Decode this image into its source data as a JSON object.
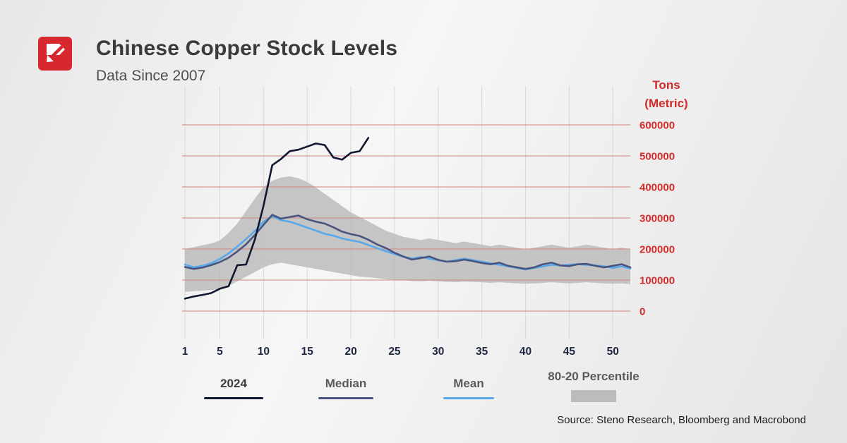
{
  "header": {
    "title": "Chinese Copper Stock Levels",
    "subtitle": "Data Since 2007",
    "logo_color": "#d7282f"
  },
  "axis": {
    "y_title_line1": "Tons",
    "y_title_line2": "(Metric)",
    "y_color": "#d22b2b",
    "x_color": "#1e2742",
    "y_ticks": [
      0,
      100000,
      200000,
      300000,
      400000,
      500000,
      600000
    ],
    "x_ticks": [
      1,
      5,
      10,
      15,
      20,
      25,
      30,
      35,
      40,
      45,
      50
    ]
  },
  "legend": {
    "items": [
      {
        "label": "2024",
        "color": "#10182f",
        "type": "line"
      },
      {
        "label": "Median",
        "color": "#49557f",
        "type": "line"
      },
      {
        "label": "Mean",
        "color": "#59a9ea",
        "type": "line"
      },
      {
        "label": "80-20 Percentile",
        "color": "#bcbcbc",
        "type": "band"
      }
    ]
  },
  "source": "Source: Steno Research, Bloomberg and Macrobond",
  "chart_data": {
    "type": "line",
    "title": "Chinese Copper Stock Levels",
    "subtitle": "Data Since 2007",
    "ylabel": "Tons (Metric)",
    "xlabel": "",
    "ylim": [
      0,
      600000
    ],
    "xlim": [
      1,
      52
    ],
    "grid": {
      "horizontal_color": "#d4827c",
      "vertical_color": "#d8d8d8"
    },
    "x": [
      1,
      2,
      3,
      4,
      5,
      6,
      7,
      8,
      9,
      10,
      11,
      12,
      13,
      14,
      15,
      16,
      17,
      18,
      19,
      20,
      21,
      22,
      23,
      24,
      25,
      26,
      27,
      28,
      29,
      30,
      31,
      32,
      33,
      34,
      35,
      36,
      37,
      38,
      39,
      40,
      41,
      42,
      43,
      44,
      45,
      46,
      47,
      48,
      49,
      50,
      51,
      52
    ],
    "series": [
      {
        "name": "2024",
        "color": "#10182f",
        "values": [
          40000,
          47000,
          52000,
          58000,
          72000,
          80000,
          148000,
          150000,
          230000,
          340000,
          470000,
          490000,
          515000,
          520000,
          530000,
          540000,
          535000,
          495000,
          488000,
          510000,
          515000,
          558000,
          null,
          null,
          null,
          null,
          null,
          null,
          null,
          null,
          null,
          null,
          null,
          null,
          null,
          null,
          null,
          null,
          null,
          null,
          null,
          null,
          null,
          null,
          null,
          null,
          null,
          null,
          null,
          null,
          null,
          null
        ]
      },
      {
        "name": "Median",
        "color": "#49557f",
        "values": [
          142000,
          136000,
          140000,
          148000,
          158000,
          172000,
          192000,
          215000,
          245000,
          278000,
          310000,
          298000,
          303000,
          308000,
          296000,
          288000,
          282000,
          270000,
          256000,
          248000,
          242000,
          230000,
          215000,
          203000,
          188000,
          176000,
          166000,
          171000,
          176000,
          165000,
          159000,
          161000,
          166000,
          161000,
          155000,
          151000,
          156000,
          146000,
          141000,
          136000,
          141000,
          151000,
          156000,
          147000,
          145000,
          151000,
          152000,
          146000,
          141000,
          146000,
          151000,
          141000
        ]
      },
      {
        "name": "Mean",
        "color": "#59a9ea",
        "values": [
          150000,
          141000,
          146000,
          154000,
          168000,
          186000,
          208000,
          232000,
          258000,
          288000,
          306000,
          293000,
          288000,
          279000,
          269000,
          259000,
          249000,
          243000,
          234000,
          228000,
          223000,
          213000,
          203000,
          193000,
          184000,
          175000,
          169000,
          174000,
          169000,
          164000,
          159000,
          164000,
          169000,
          164000,
          159000,
          154000,
          149000,
          144000,
          139000,
          134000,
          139000,
          144000,
          149000,
          147000,
          149000,
          151000,
          149000,
          147000,
          144000,
          139000,
          144000,
          137000
        ]
      }
    ],
    "band": {
      "name": "80-20 Percentile",
      "color": "#bcbcbc",
      "opacity": 0.85,
      "upper": [
        200000,
        206000,
        212000,
        218000,
        228000,
        252000,
        282000,
        322000,
        362000,
        400000,
        420000,
        430000,
        434000,
        428000,
        416000,
        398000,
        378000,
        358000,
        338000,
        318000,
        303000,
        289000,
        274000,
        259000,
        249000,
        239000,
        234000,
        229000,
        234000,
        229000,
        224000,
        219000,
        224000,
        219000,
        214000,
        209000,
        214000,
        209000,
        204000,
        199000,
        204000,
        209000,
        214000,
        209000,
        204000,
        209000,
        214000,
        209000,
        204000,
        199000,
        204000,
        199000
      ],
      "lower": [
        62000,
        64000,
        66000,
        68000,
        71000,
        81000,
        96000,
        111000,
        126000,
        141000,
        151000,
        156000,
        151000,
        146000,
        141000,
        136000,
        131000,
        126000,
        121000,
        116000,
        111000,
        109000,
        106000,
        103000,
        101000,
        99000,
        97000,
        96000,
        98000,
        96000,
        94000,
        93000,
        95000,
        94000,
        93000,
        91000,
        93000,
        91000,
        89000,
        88000,
        89000,
        91000,
        93000,
        91000,
        89000,
        91000,
        93000,
        91000,
        89000,
        88000,
        89000,
        87000
      ]
    },
    "legend_position": "bottom"
  }
}
